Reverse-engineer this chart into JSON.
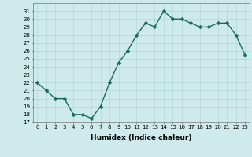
{
  "x": [
    0,
    1,
    2,
    3,
    4,
    5,
    6,
    7,
    8,
    9,
    10,
    11,
    12,
    13,
    14,
    15,
    16,
    17,
    18,
    19,
    20,
    21,
    22,
    23
  ],
  "y": [
    22,
    21,
    20,
    20,
    18,
    18,
    17.5,
    19,
    22,
    24.5,
    26,
    28,
    29.5,
    29,
    31,
    30,
    30,
    29.5,
    29,
    29,
    29.5,
    29.5,
    28,
    25.5
  ],
  "line_color": "#1a6b5a",
  "marker": "D",
  "markersize": 2.5,
  "bg_color": "#ceeaea",
  "grid_color": "#afd4d4",
  "xlabel": "Humidex (Indice chaleur)",
  "ylim": [
    17,
    32
  ],
  "xlim": [
    -0.5,
    23.5
  ],
  "yticks": [
    17,
    18,
    19,
    20,
    21,
    22,
    23,
    24,
    25,
    26,
    27,
    28,
    29,
    30,
    31
  ],
  "xticks": [
    0,
    1,
    2,
    3,
    4,
    5,
    6,
    7,
    8,
    9,
    10,
    11,
    12,
    13,
    14,
    15,
    16,
    17,
    18,
    19,
    20,
    21,
    22,
    23
  ],
  "font_color": "#000000",
  "linewidth": 1.0,
  "tick_fontsize": 5.0,
  "xlabel_fontsize": 6.5
}
